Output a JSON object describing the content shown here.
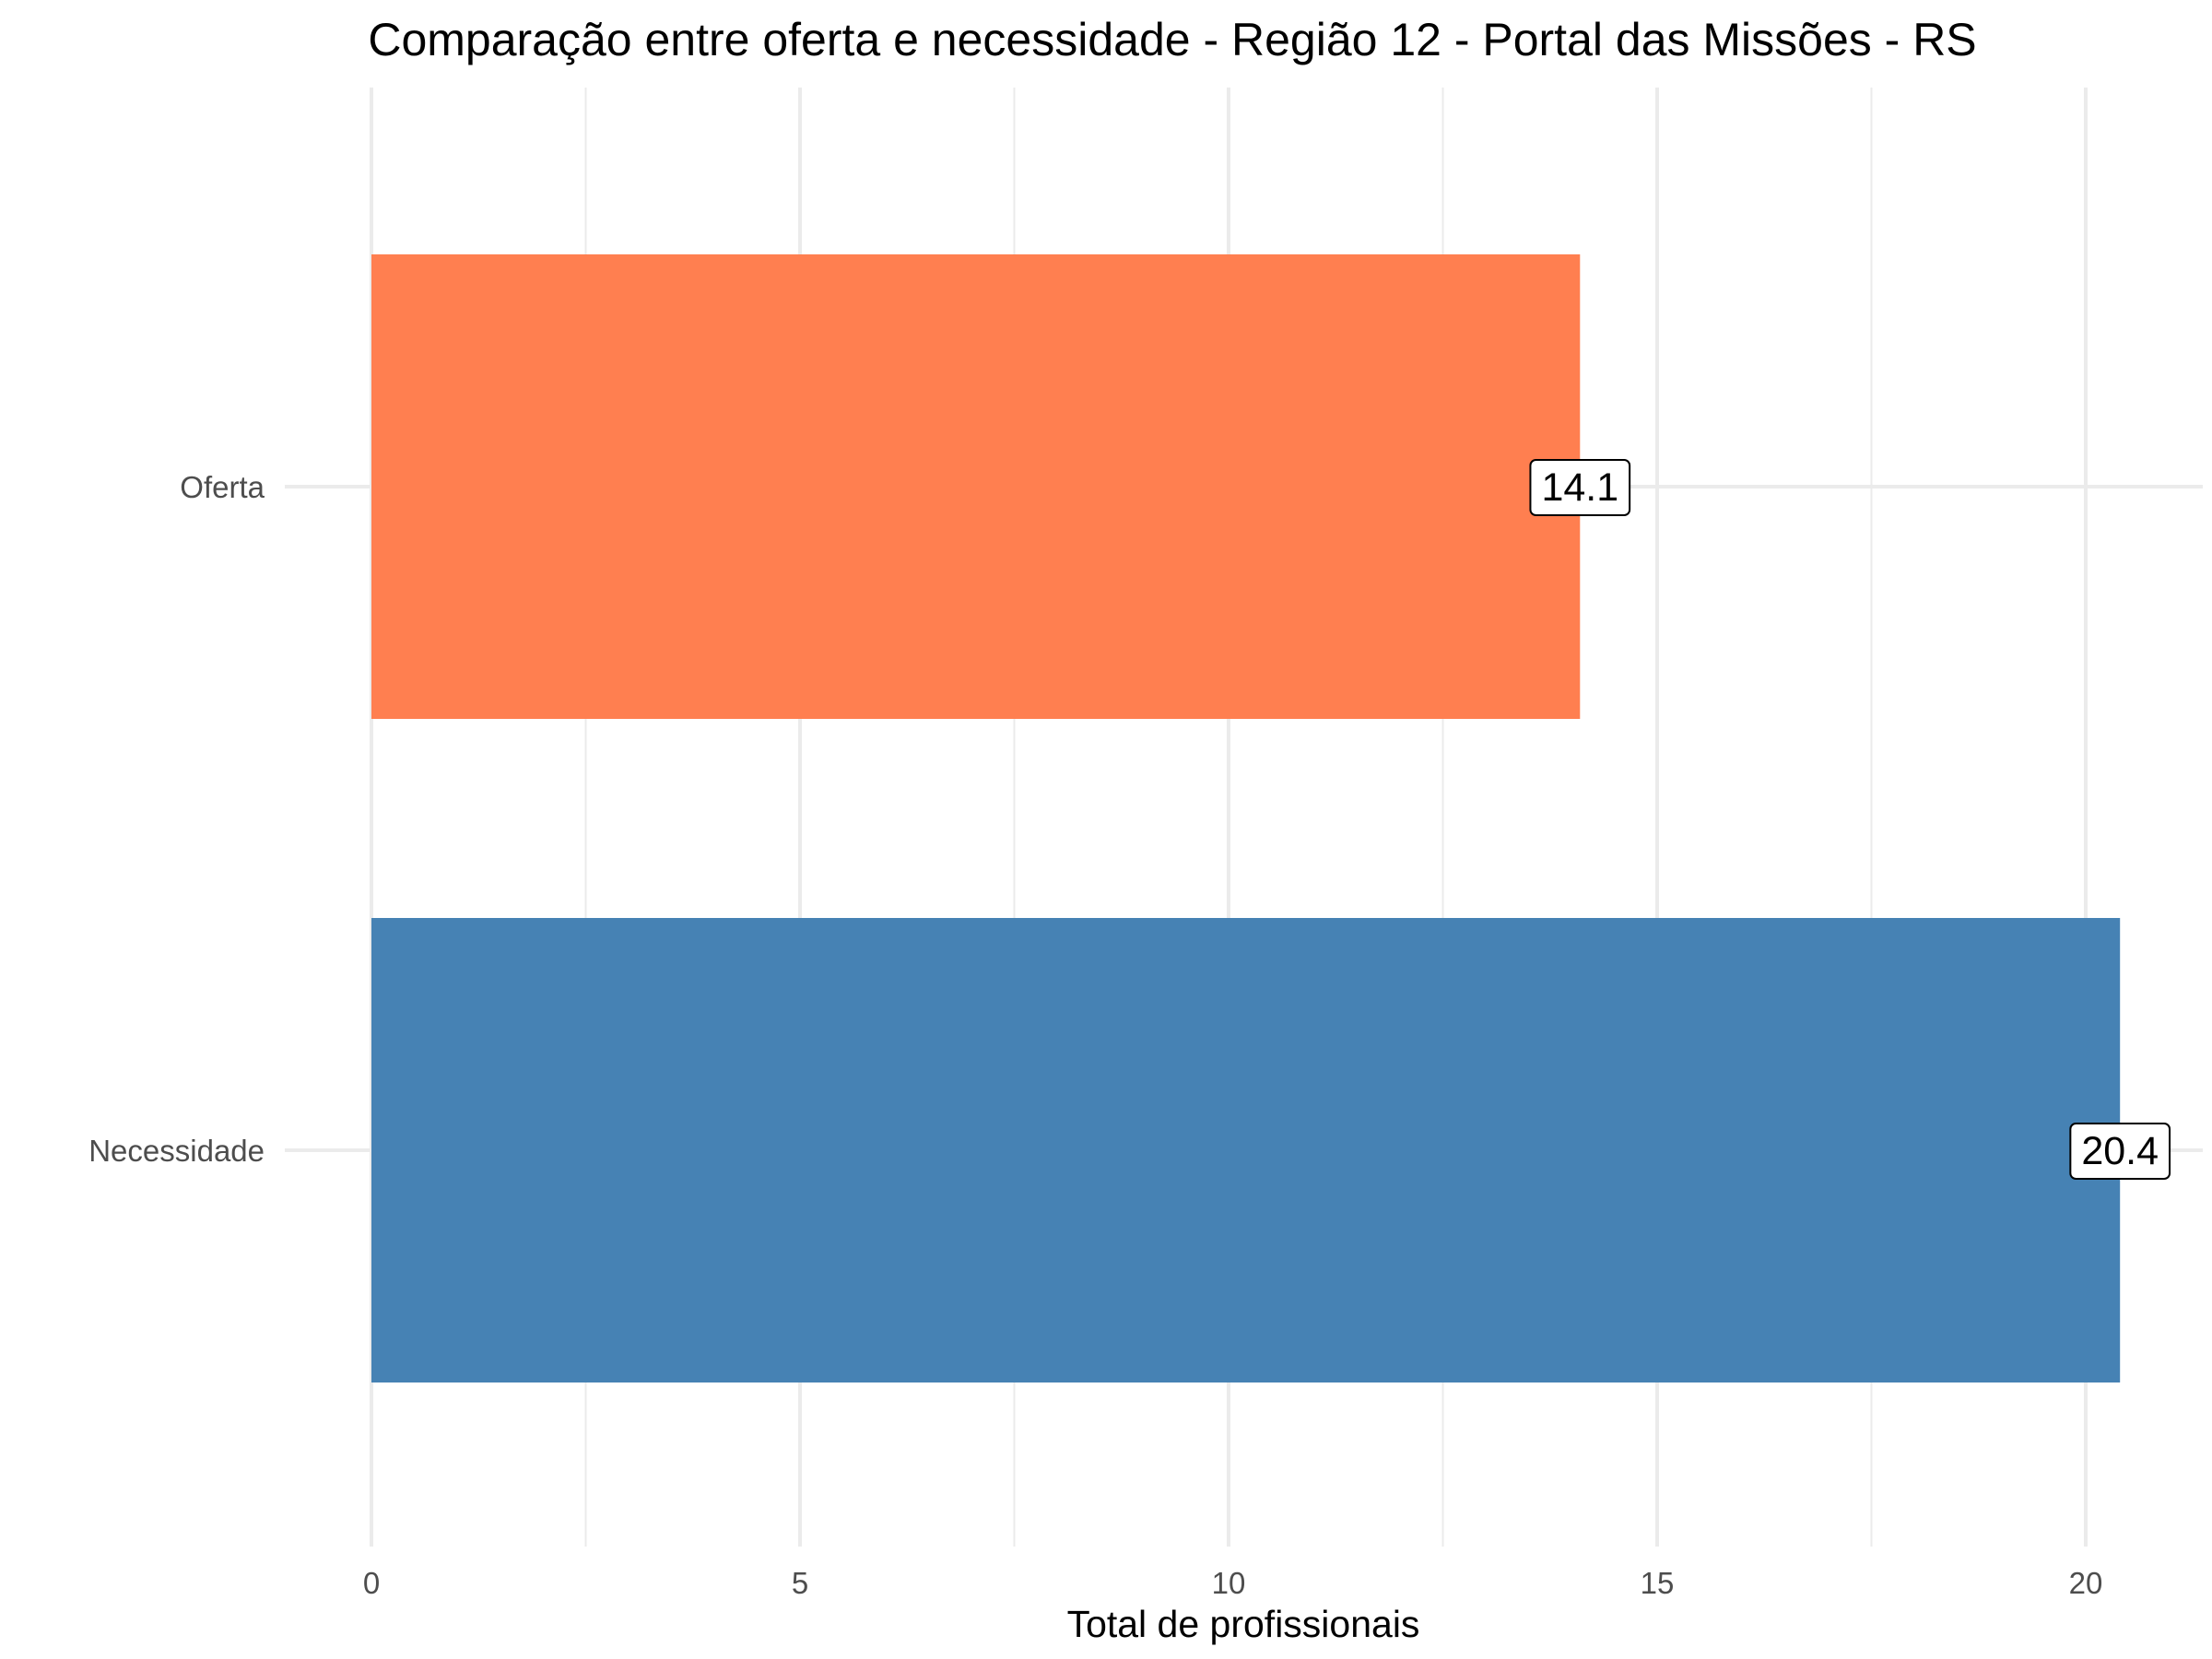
{
  "chart_data": {
    "type": "bar",
    "orientation": "horizontal",
    "title": "Comparação entre oferta e necessidade - Região 12 - Portal das Missões - RS",
    "xlabel": "Total de profissionais",
    "ylabel": "",
    "categories": [
      "Oferta",
      "Necessidade"
    ],
    "values": [
      14.1,
      20.4
    ],
    "data_labels": [
      "14.1",
      "20.4"
    ],
    "colors": [
      "#FF7F50",
      "#4682B4"
    ],
    "xlim": [
      0,
      21.4
    ],
    "x_ticks": [
      0,
      5,
      10,
      15,
      20
    ],
    "x_tick_labels": [
      "0",
      "5",
      "10",
      "15",
      "20"
    ],
    "grid": true,
    "legend": "none"
  }
}
